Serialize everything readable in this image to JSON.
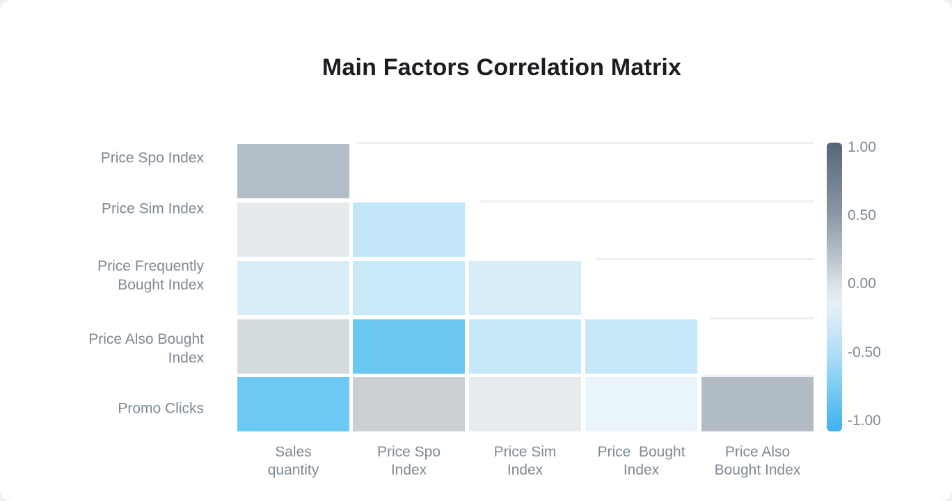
{
  "chart_data": {
    "type": "heatmap",
    "title": "Main Factors Correlation Matrix",
    "rows": [
      "Price Spo Index",
      "Price Sim Index",
      "Price Frequently Bought Index",
      "Price Also Bought Index",
      "Promo Clicks"
    ],
    "row_label_lines": [
      [
        "Price Spo Index"
      ],
      [
        "Price Sim Index"
      ],
      [
        "Price Frequently",
        "Bought Index"
      ],
      [
        "Price Also Bought",
        "Index"
      ],
      [
        "Promo Clicks"
      ]
    ],
    "columns": [
      "Sales quantity",
      "Price Spo Index",
      "Price Sim Index",
      "Price  Bought Index",
      "Price Also Bought Index"
    ],
    "column_label_lines": [
      [
        "Sales",
        "quantity"
      ],
      [
        "Price Spo",
        "Index"
      ],
      [
        "Price Sim",
        "Index"
      ],
      [
        "Price  Bought",
        "Index"
      ],
      [
        "Price Also",
        "Bought Index"
      ]
    ],
    "values": [
      [
        0.3,
        null,
        null,
        null,
        null
      ],
      [
        0.02,
        -0.45,
        null,
        null,
        null
      ],
      [
        -0.3,
        -0.4,
        -0.3,
        null,
        null
      ],
      [
        0.1,
        -0.8,
        -0.45,
        -0.45,
        null
      ],
      [
        -0.8,
        0.15,
        0.0,
        -0.15,
        0.3
      ]
    ],
    "cell_colors": [
      [
        "#b2bdc7",
        null,
        null,
        null,
        null
      ],
      [
        "#e7eaed",
        "#c3e6f8",
        null,
        null,
        null
      ],
      [
        "#d9edf9",
        "#c9e9f8",
        "#d9edf9",
        null,
        null
      ],
      [
        "#d3dbdf",
        "#6cc8f3",
        "#c6e8f8",
        "#c5e7f8",
        null
      ],
      [
        "#6cc9f3",
        "#cacfd4",
        "#e6ebee",
        "#e9f4fb",
        "#b2bcc5"
      ]
    ],
    "colorbar": {
      "min": -1.0,
      "max": 1.0,
      "tick_labels": [
        "1.00",
        "0.50",
        "0.00",
        "-0.50",
        "-1.00"
      ],
      "gradient_top_to_bottom": [
        "#556777 0%",
        "#8b98a5 25%",
        "#c5cdd5 43%",
        "#dde4e9 50%",
        "#e6eff5 56%",
        "#cfe7f7 64%",
        "#a8dbf6 75%",
        "#6ec5f2 88%",
        "#3db2f0 100%"
      ],
      "legend_position": "right"
    },
    "layout": {
      "triangle": "lower",
      "grid": "partial-upper-triangle-stubs",
      "background": "#ffffff"
    },
    "colors": {
      "title_text": "#1a1c20",
      "axis_label_text": "#7e8a94",
      "gridline": "#edf1f2",
      "negative_extreme": "#3db2f0",
      "positive_extreme": "#556777"
    }
  }
}
